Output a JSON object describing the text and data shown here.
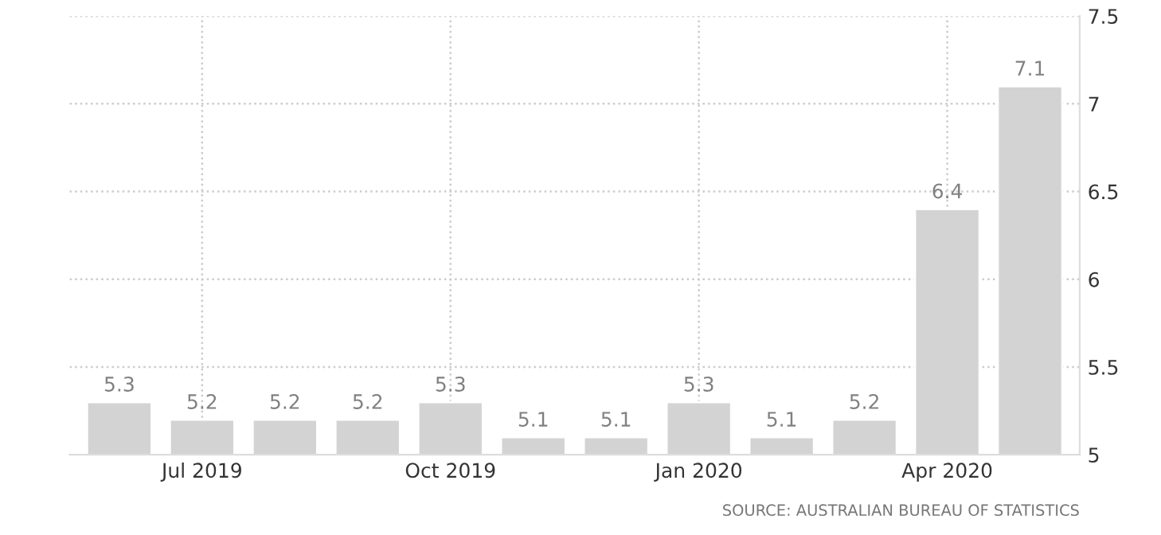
{
  "chart_data": {
    "type": "bar",
    "categories": [
      null,
      "Jul 2019",
      null,
      null,
      "Oct 2019",
      null,
      null,
      "Jan 2020",
      null,
      null,
      "Apr 2020",
      null
    ],
    "values": [
      5.3,
      5.2,
      5.2,
      5.2,
      5.3,
      5.1,
      5.1,
      5.3,
      5.1,
      5.2,
      6.4,
      7.1
    ],
    "color": "#d3d3d3",
    "data_labels": true,
    "ylim": [
      5,
      7.5
    ],
    "yticks": [
      5,
      5.5,
      6,
      6.5,
      7,
      7.5
    ],
    "grid": true,
    "legend": false,
    "annotations": [
      "SOURCE: AUSTRALIAN BUREAU OF STATISTICS"
    ]
  }
}
